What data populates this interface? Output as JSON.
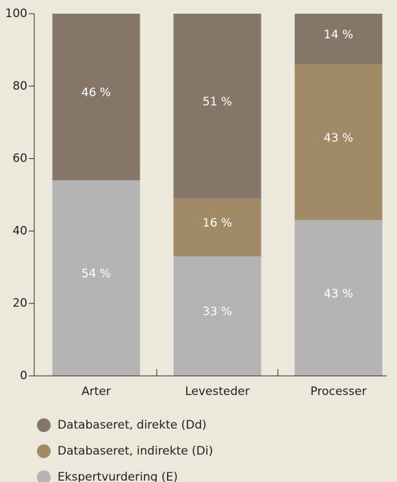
{
  "chart_data": {
    "type": "stacked_bar",
    "categories": [
      "Arter",
      "Levesteder",
      "Processer"
    ],
    "series": [
      {
        "name": "Databaseret, direkte (Dd)",
        "color": "#857668",
        "values": [
          46,
          51,
          14
        ],
        "value_labels": [
          "46 %",
          "51 %",
          "14 %"
        ]
      },
      {
        "name": "Databaseret, indirekte (Di)",
        "color": "#a18b66",
        "values": [
          null,
          16,
          43
        ],
        "value_labels": [
          null,
          "16 %",
          "43 %"
        ]
      },
      {
        "name": "Ekspertvurdering (E)",
        "color": "#b4b4b5",
        "values": [
          54,
          33,
          43
        ],
        "value_labels": [
          "54 %",
          "33 %",
          "43 %"
        ]
      }
    ],
    "ylim": [
      0,
      100
    ],
    "yticks": [
      0,
      20,
      40,
      60,
      80,
      100
    ]
  }
}
